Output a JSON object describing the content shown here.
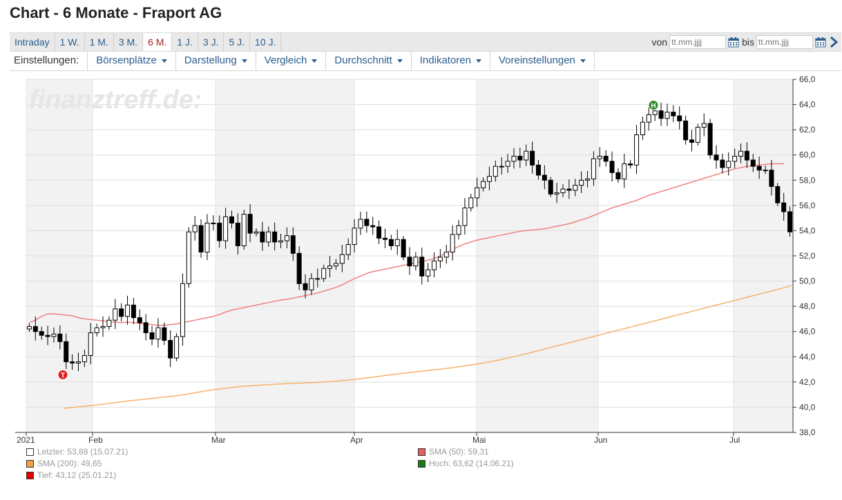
{
  "title": "Chart - 6 Monate - Fraport AG",
  "periods": [
    "Intraday",
    "1 W.",
    "1 M.",
    "3 M.",
    "6 M.",
    "1 J.",
    "3 J.",
    "5 J.",
    "10 J."
  ],
  "active_period": "6 M.",
  "daterange": {
    "from_label": "von",
    "to_label": "bis",
    "from_placeholder": "tt.mm.jjjj",
    "to_placeholder": "tt.mm.jjjj"
  },
  "settings": {
    "label": "Einstellungen:",
    "menus": [
      "Börsenplätze",
      "Darstellung",
      "Vergleich",
      "Durchschnitt",
      "Indikatoren",
      "Voreinstellungen"
    ]
  },
  "watermark": "finanztreff.de:",
  "legend": [
    {
      "text": "Letzter: 53,88 (15.07.21)",
      "color": "#ffffff"
    },
    {
      "text": "SMA (50): 59,31",
      "color": "#e06060"
    },
    {
      "text": "SMA (200): 49,65",
      "color": "#f0a040"
    },
    {
      "text": "Hoch: 63,62 (14.06.21)",
      "color": "#1a7a1a"
    },
    {
      "text": "Tief: 43,12 (25.01.21)",
      "color": "#e00000"
    }
  ],
  "colors": {
    "sma50": "#f08080",
    "sma200": "#f5b26a",
    "high_marker": "#2e8b2e",
    "low_marker": "#e02020",
    "shade": "#f2f2f2"
  },
  "chart_data": {
    "type": "candlestick",
    "ylim": [
      38,
      66
    ],
    "yticks": [
      "38,0",
      "40,0",
      "42,0",
      "44,0",
      "46,0",
      "48,0",
      "50,0",
      "52,0",
      "54,0",
      "56,0",
      "58,0",
      "60,0",
      "62,0",
      "64,0",
      "66,0"
    ],
    "xticks": [
      "2021",
      "Feb",
      "Mar",
      "Apr",
      "Mai",
      "Jun",
      "Jul"
    ],
    "markers": [
      {
        "label": "H",
        "date": "14.06.21",
        "value": 63.62
      },
      {
        "label": "T",
        "date": "25.01.21",
        "value": 43.12
      }
    ],
    "closes": [
      46.4,
      46.0,
      45.7,
      45.6,
      45.8,
      45.2,
      43.6,
      43.5,
      43.6,
      44.1,
      45.9,
      46.3,
      46.4,
      46.9,
      47.8,
      47.2,
      48.1,
      47.1,
      46.7,
      45.9,
      45.4,
      46.3,
      45.3,
      43.9,
      45.6,
      49.8,
      53.9,
      54.4,
      52.3,
      54.6,
      54.6,
      53.2,
      55.1,
      54.6,
      52.8,
      55.3,
      53.8,
      53.9,
      53.1,
      53.9,
      53.1,
      53.2,
      53.6,
      52.2,
      49.8,
      49.3,
      50.2,
      50.2,
      51.0,
      51.2,
      51.4,
      52.1,
      52.9,
      54.2,
      54.9,
      54.4,
      54.3,
      53.4,
      53.3,
      52.8,
      53.3,
      51.9,
      51.2,
      51.9,
      50.4,
      50.9,
      51.6,
      51.9,
      52.3,
      53.7,
      54.4,
      55.8,
      56.6,
      57.4,
      57.9,
      58.3,
      59.1,
      59.1,
      59.5,
      59.9,
      59.6,
      60.3,
      59.2,
      58.4,
      58.0,
      56.9,
      57.0,
      57.3,
      57.2,
      57.6,
      58.0,
      58.1,
      59.7,
      59.9,
      59.5,
      58.6,
      58.1,
      59.3,
      59.2,
      61.6,
      62.6,
      63.2,
      63.5,
      62.9,
      63.4,
      63.1,
      62.7,
      61.2,
      61.0,
      62.2,
      62.5,
      60.0,
      59.6,
      59.0,
      59.5,
      59.9,
      60.3,
      59.6,
      59.1,
      58.8,
      58.8,
      57.5,
      56.2,
      55.5,
      53.9
    ],
    "sma50": [
      46.7,
      46.9,
      47.2,
      47.4,
      47.4,
      47.35,
      47.3,
      47.25,
      47.1,
      47.0,
      46.95,
      46.9,
      46.85,
      46.8,
      46.75,
      46.7,
      46.75,
      46.7,
      46.65,
      46.6,
      46.55,
      46.5,
      46.5,
      46.55,
      46.6,
      46.7,
      46.8,
      46.9,
      47.0,
      47.1,
      47.2,
      47.35,
      47.55,
      47.7,
      47.8,
      47.9,
      48.0,
      48.1,
      48.2,
      48.3,
      48.4,
      48.5,
      48.55,
      48.65,
      48.75,
      48.85,
      48.95,
      49.05,
      49.2,
      49.35,
      49.5,
      49.7,
      49.95,
      50.2,
      50.4,
      50.6,
      50.75,
      50.85,
      50.95,
      51.05,
      51.15,
      51.25,
      51.35,
      51.45,
      51.55,
      51.65,
      51.8,
      52.0,
      52.25,
      52.5,
      52.75,
      52.95,
      53.1,
      53.25,
      53.35,
      53.45,
      53.55,
      53.65,
      53.75,
      53.85,
      53.95,
      54.0,
      54.05,
      54.1,
      54.15,
      54.25,
      54.35,
      54.45,
      54.55,
      54.7,
      54.85,
      55.0,
      55.2,
      55.4,
      55.6,
      55.8,
      55.95,
      56.1,
      56.25,
      56.4,
      56.6,
      56.8,
      56.95,
      57.1,
      57.25,
      57.4,
      57.55,
      57.7,
      57.85,
      58.0,
      58.15,
      58.3,
      58.45,
      58.6,
      58.75,
      58.9,
      59.0,
      59.1,
      59.15,
      59.2,
      59.25,
      59.3,
      59.3,
      59.31
    ],
    "sma200": [
      39.9,
      39.95,
      40.0,
      40.05,
      40.1,
      40.15,
      40.2,
      40.26,
      40.32,
      40.38,
      40.44,
      40.5,
      40.55,
      40.6,
      40.65,
      40.7,
      40.75,
      40.8,
      40.85,
      40.9,
      40.97,
      41.05,
      41.13,
      41.21,
      41.29,
      41.36,
      41.42,
      41.48,
      41.54,
      41.6,
      41.64,
      41.68,
      41.71,
      41.74,
      41.77,
      41.8,
      41.83,
      41.85,
      41.87,
      41.89,
      41.91,
      41.93,
      41.95,
      41.97,
      42.0,
      42.03,
      42.07,
      42.11,
      42.15,
      42.2,
      42.25,
      42.31,
      42.37,
      42.43,
      42.49,
      42.55,
      42.61,
      42.67,
      42.73,
      42.78,
      42.83,
      42.88,
      42.93,
      42.98,
      43.03,
      43.09,
      43.15,
      43.22,
      43.29,
      43.36,
      43.43,
      43.51,
      43.6,
      43.69,
      43.79,
      43.89,
      44.0,
      44.11,
      44.22,
      44.34,
      44.46,
      44.58,
      44.7,
      44.82,
      44.94,
      45.06,
      45.18,
      45.3,
      45.42,
      45.54,
      45.66,
      45.78,
      45.9,
      46.02,
      46.14,
      46.26,
      46.38,
      46.5,
      46.62,
      46.74,
      46.86,
      46.98,
      47.1,
      47.22,
      47.34,
      47.46,
      47.58,
      47.7,
      47.82,
      47.94,
      48.06,
      48.18,
      48.3,
      48.42,
      48.54,
      48.66,
      48.78,
      48.9,
      49.02,
      49.14,
      49.26,
      49.38,
      49.5,
      49.65
    ]
  }
}
